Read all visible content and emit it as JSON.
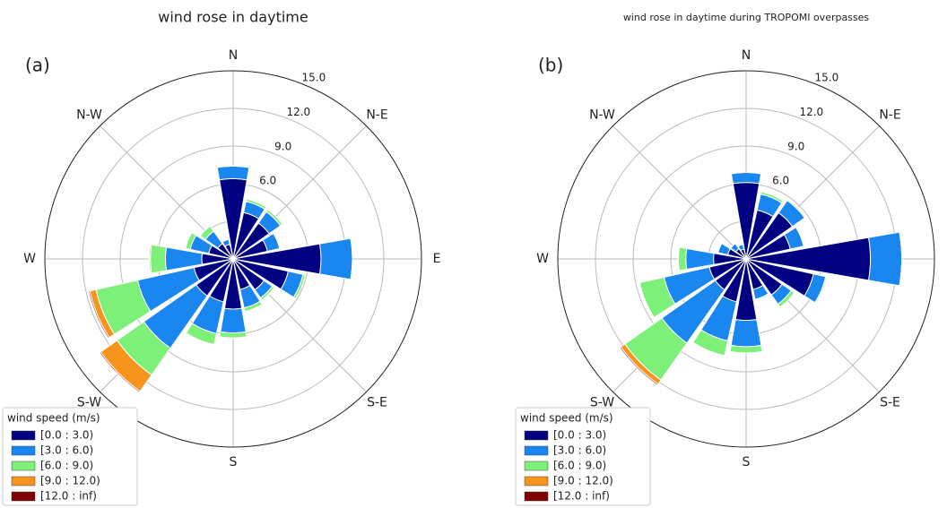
{
  "chart_data": [
    {
      "type": "windrose",
      "title": "wind rose in daytime",
      "panel_label": "(a)",
      "categories": [
        "N",
        null,
        "N-E",
        null,
        "E",
        null,
        "S-E",
        null,
        "S",
        null,
        "S-W",
        null,
        "W",
        null,
        "N-W",
        null
      ],
      "rlim": [
        0,
        15
      ],
      "rticks": [
        {
          "value": 3,
          "label": "3.0"
        },
        {
          "value": 6,
          "label": "6.0"
        },
        {
          "value": 9,
          "label": "9.0"
        },
        {
          "value": 12,
          "label": "12.0"
        },
        {
          "value": 15,
          "label": "15.0"
        }
      ],
      "legend_title": "wind speed (m/s)",
      "series": [
        {
          "name": "[0.0 : 3.0)",
          "color": "#000080",
          "values": [
            6.4,
            3.8,
            3.5,
            2.8,
            7.0,
            4.5,
            3.0,
            2.5,
            4.0,
            3.5,
            3.6,
            3.2,
            2.5,
            2.0,
            1.5,
            1.2
          ]
        },
        {
          "name": "[3.0 : 6.0)",
          "color": "#1a86f0",
          "values": [
            1.0,
            0.9,
            1.1,
            1.0,
            2.5,
            1.2,
            0.8,
            1.5,
            1.9,
            2.6,
            5.1,
            4.6,
            2.9,
            1.5,
            1.2,
            0.4
          ]
        },
        {
          "name": "[6.0 : 9.0)",
          "color": "#7df07a",
          "values": [
            0,
            0.2,
            0.2,
            0,
            0,
            0.2,
            0.2,
            0.3,
            0.4,
            0.9,
            2.6,
            3.4,
            1.2,
            0.4,
            0.5,
            0
          ]
        },
        {
          "name": "[9.0 : 12.0)",
          "color": "#f7941d",
          "values": [
            0,
            0,
            0,
            0,
            0,
            0,
            0,
            0,
            0,
            0,
            1.6,
            0.5,
            0.1,
            0,
            0,
            0
          ]
        },
        {
          "name": "[12.0 : inf)",
          "color": "#800000",
          "values": [
            0,
            0,
            0,
            0,
            0,
            0,
            0,
            0,
            0,
            0,
            0.1,
            0.1,
            0,
            0,
            0,
            0
          ]
        }
      ]
    },
    {
      "type": "windrose",
      "title": "wind rose in daytime during TROPOMI overpasses",
      "panel_label": "(b)",
      "categories": [
        "N",
        null,
        "N-E",
        null,
        "E",
        null,
        "S-E",
        null,
        "S",
        null,
        "S-W",
        null,
        "W",
        null,
        "N-W",
        null
      ],
      "rlim": [
        0,
        15
      ],
      "rticks": [
        {
          "value": 3,
          "label": "3.0"
        },
        {
          "value": 6,
          "label": "6.0"
        },
        {
          "value": 9,
          "label": "9.0"
        },
        {
          "value": 12,
          "label": "12.0"
        },
        {
          "value": 15,
          "label": "15.0"
        }
      ],
      "legend_title": "wind speed (m/s)",
      "series": [
        {
          "name": "[0.0 : 3.0)",
          "color": "#000080",
          "values": [
            6.1,
            4.0,
            4.5,
            3.6,
            9.9,
            5.5,
            3.5,
            2.5,
            4.9,
            3.5,
            3.0,
            3.0,
            2.6,
            1.5,
            1.0,
            0.8
          ]
        },
        {
          "name": "[3.0 : 6.0)",
          "color": "#1a86f0",
          "values": [
            0.8,
            1.3,
            1.2,
            1.1,
            2.5,
            1.0,
            0.9,
            0.8,
            2.1,
            3.2,
            5.2,
            3.7,
            2.2,
            0.8,
            0.5,
            0.4
          ]
        },
        {
          "name": "[6.0 : 9.0)",
          "color": "#7df07a",
          "values": [
            0,
            0.2,
            0.1,
            0,
            0,
            0.1,
            0.3,
            0,
            0.5,
            1.2,
            3.6,
            2.0,
            0.6,
            0,
            0,
            0
          ]
        },
        {
          "name": "[9.0 : 12.0)",
          "color": "#f7941d",
          "values": [
            0,
            0,
            0,
            0,
            0,
            0,
            0,
            0,
            0,
            0,
            0.4,
            0,
            0,
            0,
            0,
            0
          ]
        },
        {
          "name": "[12.0 : inf)",
          "color": "#800000",
          "values": [
            0,
            0,
            0,
            0,
            0,
            0,
            0,
            0,
            0,
            0,
            0.1,
            0,
            0,
            0,
            0,
            0
          ]
        }
      ]
    }
  ]
}
